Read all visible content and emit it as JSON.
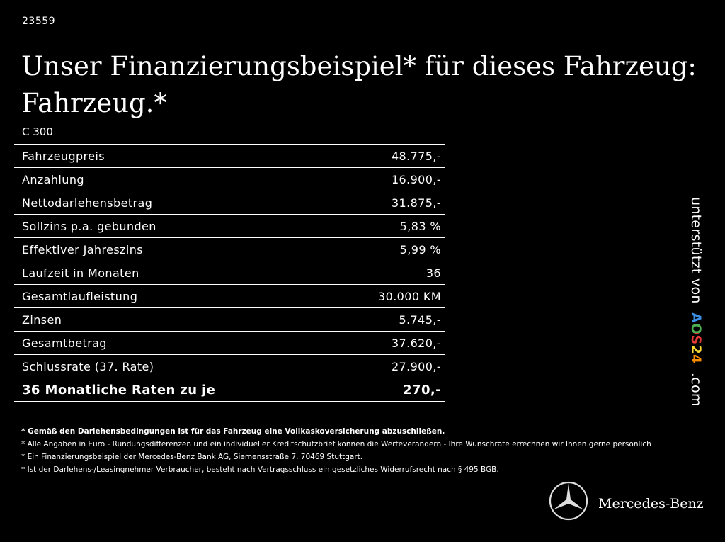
{
  "header": {
    "id": "23559",
    "title": [
      "Unser Finanzierungsbeispiel* für dieses Fahrzeug:",
      "Fahrzeug.*"
    ],
    "model": "C 300"
  },
  "table": {
    "rows": [
      [
        "Fahrzeugpreis",
        "48.775,-"
      ],
      [
        "Anzahlung",
        "16.900,-"
      ],
      [
        "Nettodarlehensbetrag",
        "31.875,-"
      ],
      [
        "Sollzins p.a. gebunden",
        "5,83 %"
      ],
      [
        "Effektiver Jahreszins",
        "5,99 %"
      ],
      [
        "Laufzeit in Monaten",
        "36"
      ],
      [
        "Gesamtlaufleistung",
        "30.000 KM"
      ],
      [
        "Zinsen",
        "5.745,-"
      ],
      [
        "Gesamtbetrag",
        "37.620,-"
      ],
      [
        "Schlussrate (37. Rate)",
        "27.900,-"
      ],
      [
        "36 Monatliche Raten zu je",
        "270,-"
      ]
    ]
  },
  "footnotes": [
    "* Gemäß den Darlehensbedingungen ist für das Fahrzeug eine Vollkaskoversicherung abzuschließen.",
    "* Alle Angaben in Euro - Rundungsdifferenzen und ein individueller Kreditschutzbrief können die Werteverändern - Ihre Wunschrate errechnen wir Ihnen gerne persönlich",
    "* Ein Finanzierungsbeispiel der Mercedes-Benz Bank AG, Siemensstraße 7, 70469 Stuttgart.",
    "* Ist der Darlehens-/Leasingnehmer Verbraucher, besteht nach Vertragsschluss ein gesetzliches Widerrufsrecht nach § 495 BGB."
  ],
  "sponsor": {
    "prefix": "unterstützt von",
    "brand": "AOS24",
    "suffix": ".com"
  },
  "logo": {
    "text": "Mercedes-Benz"
  }
}
